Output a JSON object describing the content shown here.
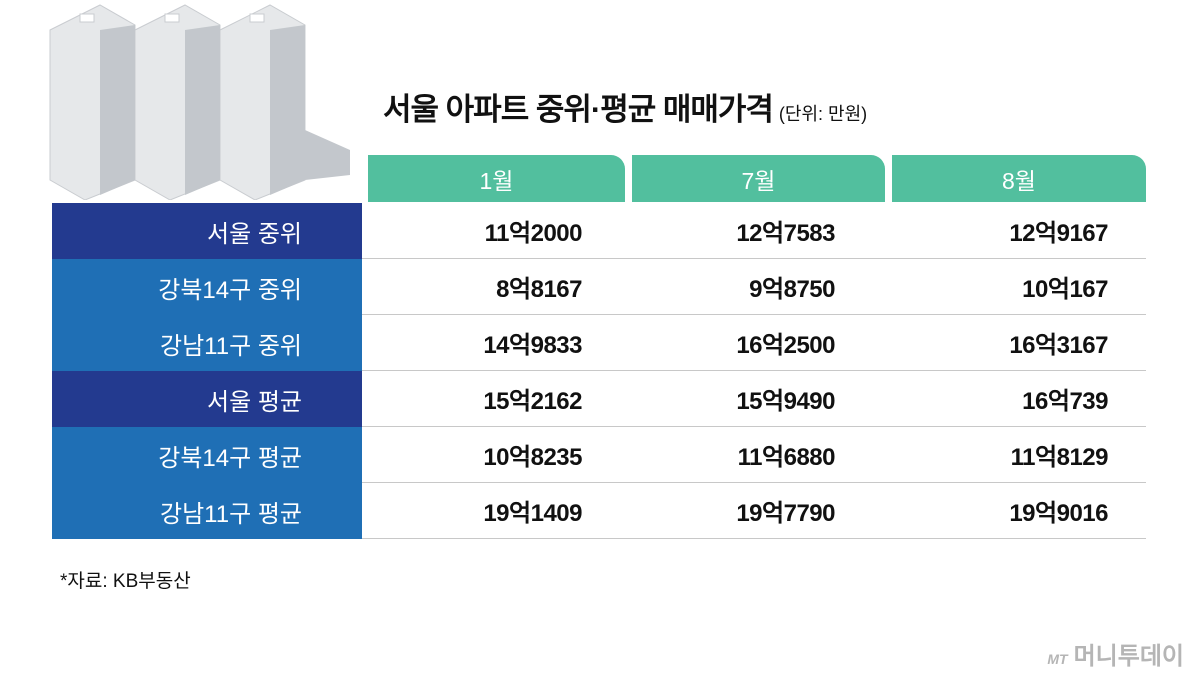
{
  "header": {
    "title": "서울 아파트 중위·평균 매매가격",
    "unit": "(단위: 만원)"
  },
  "table": {
    "columns": [
      "1월",
      "7월",
      "8월"
    ],
    "rows": [
      {
        "label": "서울 중위",
        "color": "#233a8f",
        "values": [
          "11억2000",
          "12억7583",
          "12억9167"
        ]
      },
      {
        "label": "강북14구 중위",
        "color": "#1f6fb5",
        "values": [
          "8억8167",
          "9억8750",
          "10억167"
        ]
      },
      {
        "label": "강남11구 중위",
        "color": "#1f6fb5",
        "values": [
          "14억9833",
          "16억2500",
          "16억3167"
        ]
      },
      {
        "label": "서울 평균",
        "color": "#233a8f",
        "values": [
          "15억2162",
          "15억9490",
          "16억739"
        ]
      },
      {
        "label": "강북14구 평균",
        "color": "#1f6fb5",
        "values": [
          "10억8235",
          "11억6880",
          "11억8129"
        ]
      },
      {
        "label": "강남11구 평균",
        "color": "#1f6fb5",
        "values": [
          "19억1409",
          "19억7790",
          "19억9016"
        ]
      }
    ]
  },
  "footer": {
    "source": "*자료: KB부동산",
    "logo_mark": "MT",
    "logo": "머니투데이"
  }
}
